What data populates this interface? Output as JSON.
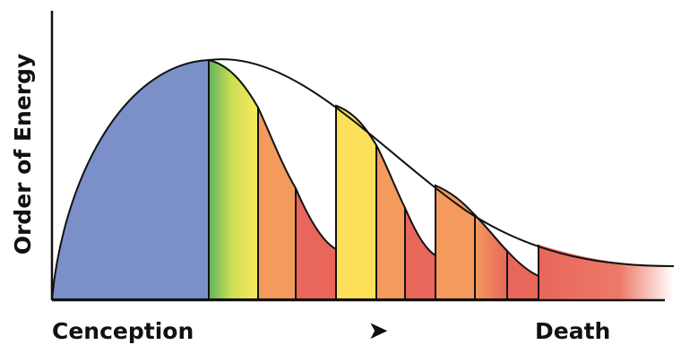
{
  "y_axis_label": "Order of Energy",
  "x_axis_start_label": "Cenception",
  "x_axis_end_label": "Death",
  "arrow_glyph": "➤",
  "colors": {
    "blue": "#7b8fc9",
    "green": "#6dbb5e",
    "yellow": "#fde05a",
    "orange": "#f39a5c",
    "red": "#e8665a",
    "outline": "#111111"
  }
}
